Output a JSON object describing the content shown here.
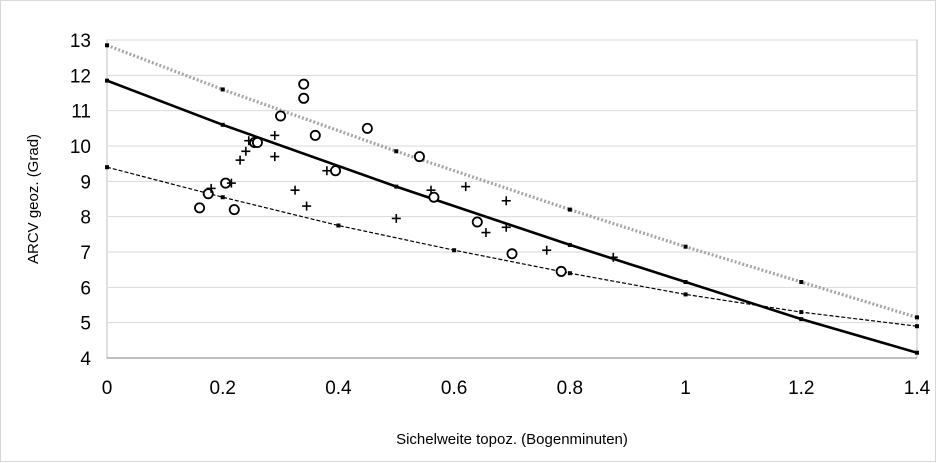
{
  "chart_data": {
    "type": "scatter",
    "title": "",
    "xlabel": "Sichelweite topoz. (Bogenminuten)",
    "ylabel": "ARCV geoz. (Grad)",
    "xlim": [
      0,
      1.4
    ],
    "ylim": [
      4,
      13
    ],
    "xticks": [
      0,
      0.2,
      0.4,
      0.6,
      0.8,
      1,
      1.2,
      1.4
    ],
    "xtick_labels": [
      "0",
      "0.2",
      "0.4",
      "0.6",
      "0.8",
      "1",
      "1.2",
      "1.4"
    ],
    "yticks": [
      4,
      5,
      6,
      7,
      8,
      9,
      10,
      11,
      12,
      13
    ],
    "ytick_labels": [
      "4",
      "5",
      "6",
      "7",
      "8",
      "9",
      "10",
      "11",
      "12",
      "13"
    ],
    "grid": "horizontal",
    "legend": "none",
    "series": [
      {
        "marker": "circle",
        "color": "#000000",
        "points": [
          [
            0.16,
            8.25
          ],
          [
            0.175,
            8.65
          ],
          [
            0.205,
            8.95
          ],
          [
            0.22,
            8.2
          ],
          [
            0.255,
            10.1
          ],
          [
            0.26,
            10.1
          ],
          [
            0.3,
            10.85
          ],
          [
            0.34,
            11.75
          ],
          [
            0.34,
            11.35
          ],
          [
            0.36,
            10.3
          ],
          [
            0.395,
            9.3
          ],
          [
            0.45,
            10.5
          ],
          [
            0.54,
            9.7
          ],
          [
            0.565,
            8.55
          ],
          [
            0.64,
            7.85
          ],
          [
            0.7,
            6.95
          ],
          [
            0.785,
            6.45
          ]
        ]
      },
      {
        "marker": "plus",
        "color": "#000000",
        "points": [
          [
            0.18,
            8.8
          ],
          [
            0.215,
            8.95
          ],
          [
            0.23,
            9.6
          ],
          [
            0.24,
            9.85
          ],
          [
            0.245,
            10.15
          ],
          [
            0.29,
            10.3
          ],
          [
            0.29,
            9.7
          ],
          [
            0.325,
            8.75
          ],
          [
            0.345,
            8.3
          ],
          [
            0.38,
            9.3
          ],
          [
            0.5,
            7.95
          ],
          [
            0.56,
            8.75
          ],
          [
            0.62,
            8.85
          ],
          [
            0.655,
            7.55
          ],
          [
            0.69,
            8.45
          ],
          [
            0.69,
            7.7
          ],
          [
            0.76,
            7.05
          ],
          [
            0.875,
            6.85
          ]
        ]
      },
      {
        "line": "solid",
        "color": "#000000",
        "points": [
          [
            0,
            11.85
          ],
          [
            0.2,
            10.6
          ],
          [
            0.5,
            8.85
          ],
          [
            0.8,
            7.2
          ],
          [
            1,
            6.15
          ],
          [
            1.2,
            5.1
          ],
          [
            1.4,
            4.15
          ]
        ]
      },
      {
        "line": "dotted",
        "color": "#a6a6a6",
        "points": [
          [
            0,
            12.85
          ],
          [
            0.2,
            11.6
          ],
          [
            0.5,
            9.85
          ],
          [
            0.8,
            8.2
          ],
          [
            1,
            7.15
          ],
          [
            1.2,
            6.15
          ],
          [
            1.4,
            5.15
          ]
        ]
      },
      {
        "line": "dashed",
        "color": "#000000",
        "points": [
          [
            0,
            9.4
          ],
          [
            0.2,
            8.55
          ],
          [
            0.4,
            7.75
          ],
          [
            0.6,
            7.05
          ],
          [
            0.8,
            6.4
          ],
          [
            1,
            5.8
          ],
          [
            1.2,
            5.3
          ],
          [
            1.4,
            4.9
          ]
        ]
      }
    ]
  }
}
